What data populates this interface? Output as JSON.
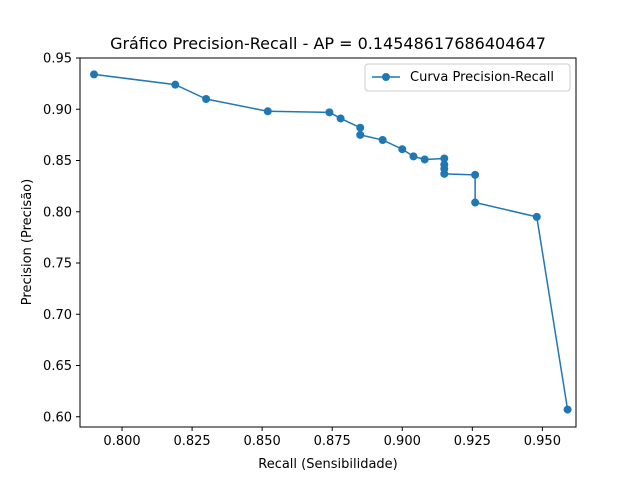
{
  "chart_data": {
    "type": "line",
    "title": "Gráfico Precision-Recall - AP = 0.14548617686404647",
    "xlabel": "Recall (Sensibilidade)",
    "ylabel": "Precision (Precisão)",
    "xlim": [
      0.785,
      0.962
    ],
    "ylim": [
      0.59,
      0.95
    ],
    "xticks": [
      "0.800",
      "0.825",
      "0.850",
      "0.875",
      "0.900",
      "0.925",
      "0.950"
    ],
    "yticks": [
      "0.60",
      "0.65",
      "0.70",
      "0.75",
      "0.80",
      "0.85",
      "0.90",
      "0.95"
    ],
    "grid": false,
    "legend_position": "top-right",
    "series": [
      {
        "name": "Curva Precision-Recall",
        "color": "#1f77b4",
        "marker": "circle",
        "points": [
          {
            "x": 0.79,
            "y": 0.934
          },
          {
            "x": 0.819,
            "y": 0.924
          },
          {
            "x": 0.83,
            "y": 0.91
          },
          {
            "x": 0.852,
            "y": 0.898
          },
          {
            "x": 0.874,
            "y": 0.897
          },
          {
            "x": 0.878,
            "y": 0.891
          },
          {
            "x": 0.885,
            "y": 0.882
          },
          {
            "x": 0.885,
            "y": 0.875
          },
          {
            "x": 0.893,
            "y": 0.87
          },
          {
            "x": 0.9,
            "y": 0.861
          },
          {
            "x": 0.904,
            "y": 0.854
          },
          {
            "x": 0.908,
            "y": 0.851
          },
          {
            "x": 0.915,
            "y": 0.852
          },
          {
            "x": 0.915,
            "y": 0.846
          },
          {
            "x": 0.915,
            "y": 0.842
          },
          {
            "x": 0.915,
            "y": 0.837
          },
          {
            "x": 0.926,
            "y": 0.836
          },
          {
            "x": 0.926,
            "y": 0.809
          },
          {
            "x": 0.948,
            "y": 0.795
          },
          {
            "x": 0.959,
            "y": 0.607
          }
        ]
      }
    ]
  }
}
